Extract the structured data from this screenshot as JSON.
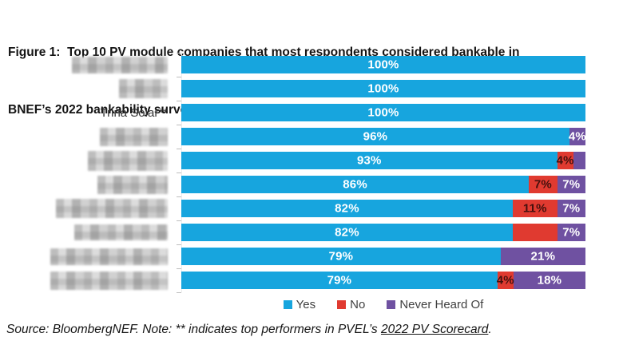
{
  "title": {
    "line1": "Figure 1:  Top 10 PV module companies that most respondents considered bankable in",
    "line2": "BNEF’s 2022 bankability survey results"
  },
  "colors": {
    "yes": "#17A5DE",
    "no": "#E03A30",
    "never_heard_of": "#6F51A1"
  },
  "legend": {
    "items": [
      {
        "key": "yes",
        "label": "Yes"
      },
      {
        "key": "no",
        "label": "No"
      },
      {
        "key": "never_heard_of",
        "label": "Never Heard Of"
      }
    ]
  },
  "source": {
    "text_before_link": "Source: BloombergNEF. Note: ** indicates top performers in PVEL’s ",
    "link_text": "2022 PV Scorecard",
    "text_after_link": "."
  },
  "chart_data": {
    "type": "bar",
    "orientation": "horizontal",
    "stacked": true,
    "value_axis": {
      "min": 0,
      "max": 100,
      "unit": "%"
    },
    "series_names": [
      "Yes",
      "No",
      "Never Heard Of"
    ],
    "rows": [
      {
        "company": "",
        "redacted": true,
        "redact_w": 120,
        "redact_h": 21,
        "yes": 100,
        "no": 0,
        "never_heard_of": 0,
        "yes_label": "100%",
        "no_label": "",
        "never_heard_of_label": ""
      },
      {
        "company": "",
        "redacted": true,
        "redact_w": 61,
        "redact_h": 24,
        "yes": 100,
        "no": 0,
        "never_heard_of": 0,
        "yes_label": "100%",
        "no_label": "",
        "never_heard_of_label": ""
      },
      {
        "company": "Trina Solar**",
        "redacted": false,
        "redact_w": 0,
        "redact_h": 0,
        "yes": 100,
        "no": 0,
        "never_heard_of": 0,
        "yes_label": "100%",
        "no_label": "",
        "never_heard_of_label": ""
      },
      {
        "company": "",
        "redacted": true,
        "redact_w": 85,
        "redact_h": 23,
        "yes": 96,
        "no": 0,
        "never_heard_of": 4,
        "yes_label": "96%",
        "no_label": "",
        "never_heard_of_label": "4%"
      },
      {
        "company": "",
        "redacted": true,
        "redact_w": 100,
        "redact_h": 25,
        "yes": 93,
        "no": 4,
        "never_heard_of": 3,
        "yes_label": "93%",
        "no_label": "4%",
        "never_heard_of_label": ""
      },
      {
        "company": "",
        "redacted": true,
        "redact_w": 88,
        "redact_h": 23,
        "yes": 86,
        "no": 7,
        "never_heard_of": 7,
        "yes_label": "86%",
        "no_label": "7%",
        "never_heard_of_label": "7%"
      },
      {
        "company": "",
        "redacted": true,
        "redact_w": 140,
        "redact_h": 24,
        "yes": 82,
        "no": 11,
        "never_heard_of": 7,
        "yes_label": "82%",
        "no_label": "11%",
        "never_heard_of_label": "7%"
      },
      {
        "company": "",
        "redacted": true,
        "redact_w": 117,
        "redact_h": 20,
        "yes": 82,
        "no": 11,
        "never_heard_of": 7,
        "yes_label": "82%",
        "no_label": "",
        "never_heard_of_label": "7%"
      },
      {
        "company": "",
        "redacted": true,
        "redact_w": 147,
        "redact_h": 21,
        "yes": 79,
        "no": 0,
        "never_heard_of": 21,
        "yes_label": "79%",
        "no_label": "",
        "never_heard_of_label": "21%"
      },
      {
        "company": "",
        "redacted": true,
        "redact_w": 147,
        "redact_h": 23,
        "yes": 79,
        "no": 4,
        "never_heard_of": 18,
        "yes_label": "79%",
        "no_label": "4%",
        "never_heard_of_label": "18%"
      }
    ]
  }
}
